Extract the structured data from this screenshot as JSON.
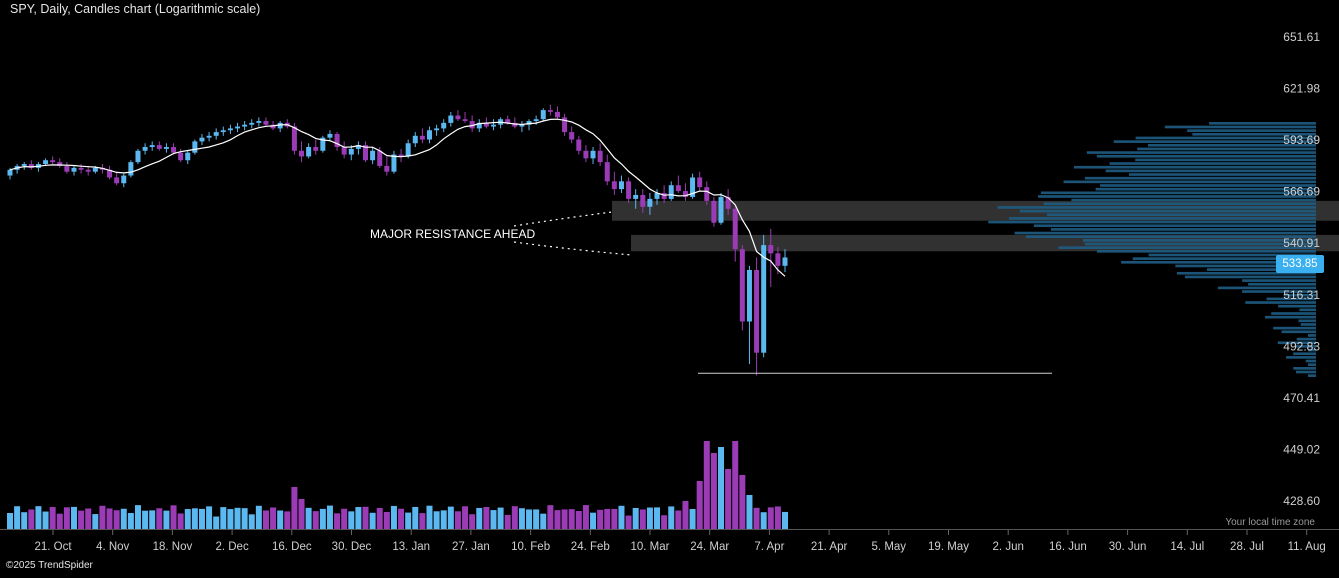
{
  "title": "SPY, Daily, Candles chart (Logarithmic scale)",
  "footer": "©2025 TrendSpider",
  "timezone_label": "Your local time zone",
  "last_price": "533.85",
  "annotation": "MAJOR RESISTANCE AHEAD",
  "colors": {
    "background": "#000000",
    "up": "#5bb8f0",
    "down": "#9b3bb5",
    "ma": "#ffffff",
    "volume_profile": "#1f5d85",
    "zone": "#3a3a3a",
    "accent": "#3ab0f0"
  },
  "chart_data": {
    "type": "candlestick",
    "title": "SPY, Daily, Candles chart (Logarithmic scale)",
    "y_scale": "log",
    "y_ticks": [
      "651.61",
      "621.98",
      "593.69",
      "566.69",
      "540.91",
      "516.31",
      "492.83",
      "470.41",
      "449.02",
      "428.60"
    ],
    "x_ticks": [
      "21. Oct",
      "4. Nov",
      "18. Nov",
      "2. Dec",
      "16. Dec",
      "30. Dec",
      "13. Jan",
      "27. Jan",
      "10. Feb",
      "24. Feb",
      "10. Mar",
      "24. Mar",
      "7. Apr",
      "21. Apr",
      "5. May",
      "19. May",
      "2. Jun",
      "16. Jun",
      "30. Jun",
      "14. Jul",
      "28. Jul",
      "11. Aug"
    ],
    "ylim": [
      420,
      665
    ],
    "grid": false,
    "candles": [
      [
        575,
        579,
        573,
        578
      ],
      [
        578,
        581,
        576,
        580
      ],
      [
        580,
        582,
        578,
        581
      ],
      [
        581,
        583,
        578,
        579
      ],
      [
        579,
        582,
        577,
        581
      ],
      [
        581,
        584,
        580,
        583
      ],
      [
        583,
        585,
        581,
        582
      ],
      [
        582,
        584,
        579,
        580
      ],
      [
        580,
        582,
        576,
        577
      ],
      [
        577,
        580,
        575,
        579
      ],
      [
        579,
        581,
        576,
        578
      ],
      [
        578,
        580,
        575,
        577
      ],
      [
        577,
        580,
        576,
        579
      ],
      [
        579,
        581,
        576,
        578
      ],
      [
        578,
        580,
        573,
        574
      ],
      [
        574,
        577,
        570,
        571
      ],
      [
        571,
        576,
        569,
        575
      ],
      [
        575,
        583,
        574,
        582
      ],
      [
        582,
        589,
        581,
        588
      ],
      [
        588,
        592,
        586,
        590
      ],
      [
        590,
        593,
        588,
        591
      ],
      [
        591,
        593,
        588,
        589
      ],
      [
        589,
        592,
        587,
        590
      ],
      [
        590,
        592,
        586,
        587
      ],
      [
        587,
        589,
        582,
        583
      ],
      [
        583,
        588,
        581,
        587
      ],
      [
        587,
        594,
        586,
        593
      ],
      [
        593,
        597,
        591,
        595
      ],
      [
        595,
        598,
        593,
        596
      ],
      [
        596,
        600,
        594,
        598
      ],
      [
        598,
        601,
        596,
        599
      ],
      [
        599,
        602,
        597,
        600
      ],
      [
        600,
        603,
        598,
        601
      ],
      [
        601,
        604,
        599,
        602
      ],
      [
        602,
        605,
        600,
        603
      ],
      [
        603,
        606,
        601,
        604
      ],
      [
        604,
        606,
        601,
        602
      ],
      [
        602,
        604,
        599,
        600
      ],
      [
        600,
        604,
        598,
        603
      ],
      [
        603,
        605,
        600,
        601
      ],
      [
        601,
        603,
        586,
        588
      ],
      [
        588,
        593,
        582,
        585
      ],
      [
        585,
        592,
        584,
        590
      ],
      [
        590,
        594,
        586,
        588
      ],
      [
        588,
        596,
        587,
        595
      ],
      [
        595,
        599,
        593,
        597
      ],
      [
        597,
        598,
        588,
        590
      ],
      [
        590,
        593,
        584,
        586
      ],
      [
        586,
        591,
        583,
        589
      ],
      [
        589,
        593,
        586,
        591
      ],
      [
        591,
        593,
        582,
        583
      ],
      [
        583,
        590,
        581,
        588
      ],
      [
        588,
        590,
        579,
        580
      ],
      [
        580,
        585,
        575,
        577
      ],
      [
        577,
        588,
        576,
        586
      ],
      [
        586,
        589,
        582,
        585
      ],
      [
        585,
        594,
        584,
        592
      ],
      [
        592,
        598,
        590,
        596
      ],
      [
        596,
        600,
        592,
        594
      ],
      [
        594,
        601,
        592,
        599
      ],
      [
        599,
        602,
        596,
        600
      ],
      [
        600,
        605,
        598,
        603
      ],
      [
        603,
        609,
        601,
        607
      ],
      [
        607,
        610,
        604,
        605
      ],
      [
        605,
        609,
        603,
        604
      ],
      [
        604,
        607,
        598,
        600
      ],
      [
        600,
        605,
        598,
        603
      ],
      [
        603,
        606,
        600,
        601
      ],
      [
        601,
        605,
        599,
        602
      ],
      [
        602,
        606,
        600,
        605
      ],
      [
        605,
        607,
        602,
        603
      ],
      [
        603,
        606,
        600,
        601
      ],
      [
        601,
        604,
        598,
        602
      ],
      [
        602,
        605,
        599,
        604
      ],
      [
        604,
        607,
        602,
        605
      ],
      [
        605,
        611,
        604,
        610
      ],
      [
        610,
        613,
        607,
        609
      ],
      [
        609,
        612,
        605,
        606
      ],
      [
        606,
        608,
        596,
        598
      ],
      [
        598,
        601,
        592,
        594
      ],
      [
        594,
        596,
        586,
        588
      ],
      [
        588,
        591,
        582,
        584
      ],
      [
        584,
        590,
        581,
        588
      ],
      [
        588,
        592,
        580,
        582
      ],
      [
        582,
        586,
        570,
        572
      ],
      [
        572,
        577,
        565,
        568
      ],
      [
        568,
        575,
        566,
        572
      ],
      [
        572,
        574,
        561,
        563
      ],
      [
        563,
        568,
        558,
        565
      ],
      [
        565,
        568,
        556,
        559
      ],
      [
        559,
        566,
        555,
        563
      ],
      [
        563,
        568,
        560,
        566
      ],
      [
        566,
        570,
        561,
        563
      ],
      [
        563,
        572,
        562,
        570
      ],
      [
        570,
        575,
        566,
        567
      ],
      [
        567,
        571,
        562,
        564
      ],
      [
        564,
        576,
        563,
        574
      ],
      [
        574,
        577,
        567,
        569
      ],
      [
        569,
        572,
        560,
        562
      ],
      [
        562,
        564,
        549,
        551
      ],
      [
        551,
        566,
        550,
        564
      ],
      [
        564,
        568,
        555,
        558
      ],
      [
        558,
        560,
        532,
        538
      ],
      [
        538,
        540,
        500,
        504
      ],
      [
        504,
        530,
        485,
        528
      ],
      [
        528,
        534,
        480,
        490
      ],
      [
        490,
        545,
        488,
        540
      ],
      [
        540,
        548,
        520,
        536
      ],
      [
        536,
        539,
        526,
        530
      ],
      [
        530,
        538,
        527,
        534
      ]
    ],
    "volume_profile_range": [
      485,
      600
    ],
    "support_level": 481,
    "resistance_zones": [
      [
        552,
        562
      ],
      [
        537,
        545
      ]
    ],
    "moving_average": "white line"
  }
}
